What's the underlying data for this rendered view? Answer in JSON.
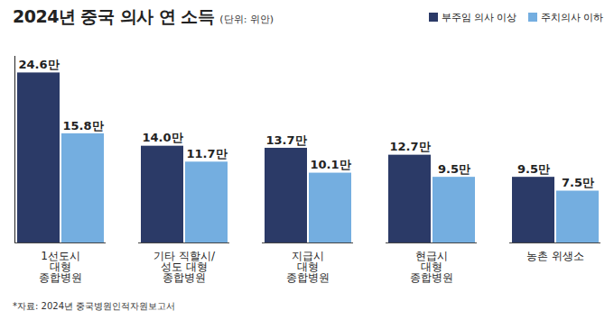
{
  "chart_data": {
    "type": "bar",
    "title": "2024년 중국 의사 연 소득",
    "subtitle": "(단위: 위안)",
    "source": "*자료: 2024년 중국병원인적자원보고서",
    "categories": [
      "1선도시\n대형\n종합병원",
      "기타 직할시/\n성도 대형\n종합병원",
      "지급시\n대형\n종합병원",
      "현급시\n대형\n종합병원",
      "농촌 위생소"
    ],
    "series": [
      {
        "name": "부주임 의사 이상",
        "color": "#2b3a67",
        "values": [
          24.6,
          14.0,
          13.7,
          12.7,
          9.5
        ],
        "value_labels": [
          "24.6만",
          "14.0만",
          "13.7만",
          "12.7만",
          "9.5만"
        ]
      },
      {
        "name": "주치의사 이하",
        "color": "#74aee0",
        "values": [
          15.8,
          11.7,
          10.1,
          9.5,
          7.5
        ],
        "value_labels": [
          "15.8만",
          "11.7만",
          "10.1만",
          "9.5만",
          "7.5만"
        ]
      }
    ],
    "ylim": [
      0,
      27
    ],
    "yticks": [],
    "grid": false,
    "legend": "top-right",
    "data_labels": true,
    "tick_labels": "x"
  }
}
